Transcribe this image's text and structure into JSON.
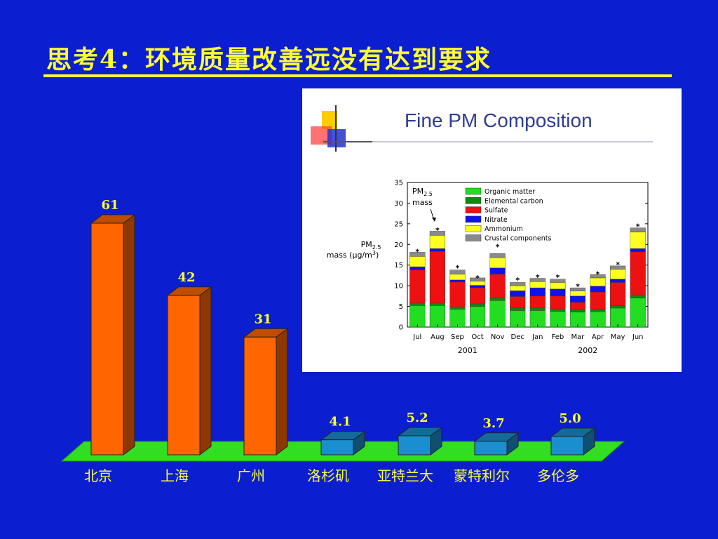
{
  "slide": {
    "title": "思考4：环境质量改善远没有达到要求"
  },
  "chart_data": [
    {
      "type": "bar",
      "categories": [
        "北京",
        "上海",
        "广州",
        "洛杉矶",
        "亚特兰大",
        "蒙特利尔",
        "多伦多"
      ],
      "values": [
        61,
        42,
        31,
        4.1,
        5.2,
        3.7,
        5.0
      ],
      "value_labels": [
        "61",
        "42",
        "31",
        "4.1",
        "5.2",
        "3.7",
        "5.0"
      ],
      "colors": {
        "highlight": "#ff6600",
        "normal": "#1a8fcf",
        "floor": "#33dd22",
        "label": "#ffff33"
      },
      "highlight_count": 3,
      "title": "",
      "xlabel": "",
      "ylabel": ""
    },
    {
      "type": "bar",
      "stacked": true,
      "title": "Fine PM Composition",
      "ylabel": "PM2.5 mass (µg/m3)",
      "ylabel_parts": {
        "main": "PM",
        "sub": "2.5",
        "mass": "mass  (",
        "mu": "µ",
        "unit": "g/m",
        "sup": "3",
        "close": ")"
      },
      "ylim": [
        0,
        35
      ],
      "yticks": [
        0,
        5,
        10,
        15,
        20,
        25,
        30,
        35
      ],
      "categories": [
        "Jul",
        "Aug",
        "Sep",
        "Oct",
        "Nov",
        "Dec",
        "Jan",
        "Feb",
        "Mar",
        "Apr",
        "May",
        "Jun"
      ],
      "year_labels": [
        {
          "label": "2001",
          "under": [
            0,
            5
          ]
        },
        {
          "label": "2002",
          "under": [
            6,
            11
          ]
        }
      ],
      "series": [
        {
          "name": "Organic matter",
          "color": "#22dd22",
          "values": [
            5.2,
            5.2,
            4.3,
            5.0,
            6.4,
            4.0,
            4.0,
            3.8,
            3.6,
            3.7,
            4.6,
            7.0
          ]
        },
        {
          "name": "Elemental carbon",
          "color": "#118811",
          "values": [
            0.6,
            0.6,
            0.6,
            0.6,
            0.6,
            0.6,
            0.6,
            0.6,
            0.6,
            0.6,
            0.6,
            0.8
          ]
        },
        {
          "name": "Sulfate",
          "color": "#ee1111",
          "values": [
            8.0,
            12.5,
            6.0,
            3.9,
            5.8,
            2.8,
            2.9,
            3.1,
            1.8,
            4.2,
            5.6,
            10.4
          ]
        },
        {
          "name": "Nitrate",
          "color": "#1111ee",
          "values": [
            0.8,
            0.7,
            0.5,
            0.6,
            1.5,
            1.4,
            2.0,
            1.7,
            1.5,
            1.4,
            0.8,
            0.8
          ]
        },
        {
          "name": "Ammonium",
          "color": "#ffff22",
          "values": [
            2.5,
            3.2,
            1.4,
            1.0,
            2.5,
            1.2,
            1.5,
            1.6,
            1.2,
            2.0,
            2.4,
            4.0
          ]
        },
        {
          "name": "Crustal components",
          "color": "#8a8a8a",
          "values": [
            1.0,
            1.0,
            1.0,
            0.8,
            1.0,
            0.8,
            0.8,
            0.8,
            0.8,
            0.8,
            0.8,
            1.0
          ]
        }
      ],
      "mass_markers": [
        18.6,
        23.8,
        14.7,
        12.2,
        19.8,
        11.7,
        12.4,
        12.4,
        10.2,
        13.2,
        15.5,
        24.7
      ],
      "annotation": {
        "line1": "PM",
        "sub": "2.5",
        "line2": "mass"
      },
      "legend_position": "top-right"
    }
  ]
}
